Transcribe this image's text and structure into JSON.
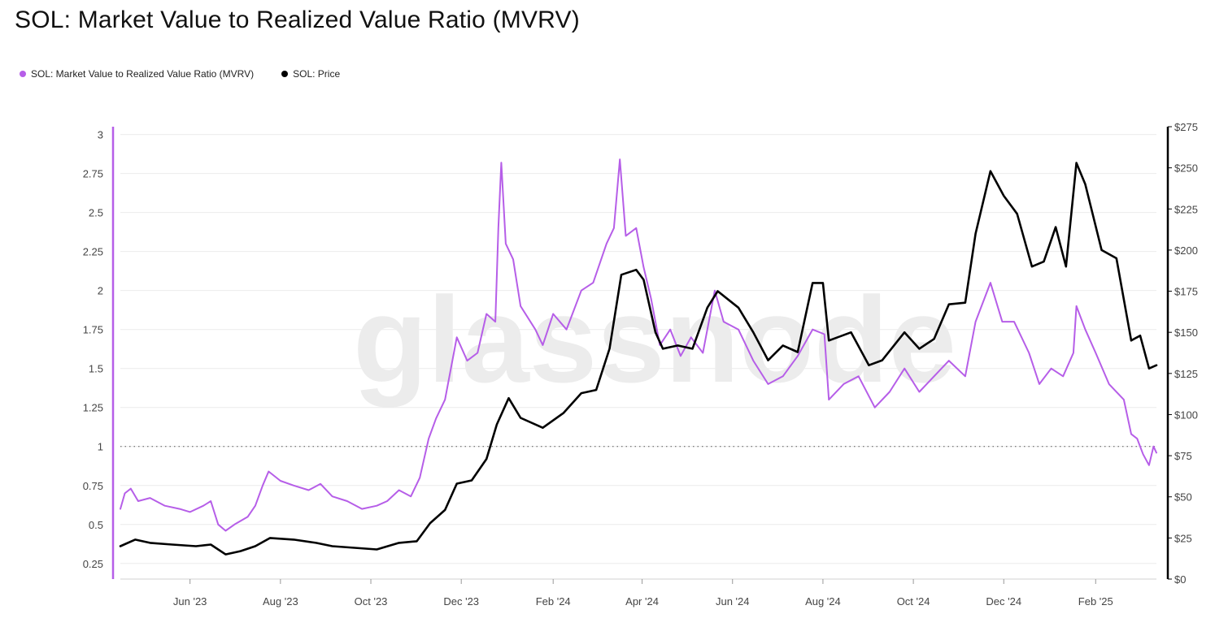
{
  "title": "SOL: Market Value to Realized Value Ratio (MVRV)",
  "legend": [
    {
      "label": "SOL: Market Value to Realized Value Ratio (MVRV)",
      "color": "#b65ee8"
    },
    {
      "label": "SOL: Price",
      "color": "#000000"
    }
  ],
  "watermark": "glassnode",
  "chart_data": {
    "type": "line",
    "title": "SOL: Market Value to Realized Value Ratio (MVRV)",
    "x_ticks": [
      "Jun '23",
      "Aug '23",
      "Oct '23",
      "Dec '23",
      "Feb '24",
      "Apr '24",
      "Jun '24",
      "Aug '24",
      "Oct '24",
      "Dec '24",
      "Feb '25"
    ],
    "x_range": [
      "2023-04-15",
      "2025-03-14"
    ],
    "y_left": {
      "ticks": [
        "0.25",
        "0.5",
        "0.75",
        "1",
        "1.25",
        "1.5",
        "1.75",
        "2",
        "2.25",
        "2.5",
        "2.75",
        "3"
      ],
      "range": [
        0.15,
        3.05
      ]
    },
    "y_right": {
      "ticks": [
        "$0",
        "$25",
        "$50",
        "$75",
        "$100",
        "$125",
        "$150",
        "$175",
        "$200",
        "$225",
        "$250",
        "$275"
      ],
      "range": [
        0,
        275
      ]
    },
    "reference_line": {
      "axis": "left",
      "value": 1
    },
    "series": [
      {
        "name": "SOL: Market Value to Realized Value Ratio (MVRV)",
        "axis": "left",
        "color": "#b65ee8",
        "points": [
          [
            "2023-04-15",
            0.6
          ],
          [
            "2023-04-18",
            0.7
          ],
          [
            "2023-04-22",
            0.73
          ],
          [
            "2023-04-27",
            0.65
          ],
          [
            "2023-05-05",
            0.67
          ],
          [
            "2023-05-15",
            0.62
          ],
          [
            "2023-05-25",
            0.6
          ],
          [
            "2023-06-01",
            0.58
          ],
          [
            "2023-06-10",
            0.62
          ],
          [
            "2023-06-15",
            0.65
          ],
          [
            "2023-06-20",
            0.5
          ],
          [
            "2023-06-25",
            0.46
          ],
          [
            "2023-07-01",
            0.5
          ],
          [
            "2023-07-10",
            0.55
          ],
          [
            "2023-07-15",
            0.62
          ],
          [
            "2023-07-20",
            0.75
          ],
          [
            "2023-07-24",
            0.84
          ],
          [
            "2023-08-01",
            0.78
          ],
          [
            "2023-08-10",
            0.75
          ],
          [
            "2023-08-20",
            0.72
          ],
          [
            "2023-08-28",
            0.76
          ],
          [
            "2023-09-05",
            0.68
          ],
          [
            "2023-09-15",
            0.65
          ],
          [
            "2023-09-25",
            0.6
          ],
          [
            "2023-10-05",
            0.62
          ],
          [
            "2023-10-12",
            0.65
          ],
          [
            "2023-10-20",
            0.72
          ],
          [
            "2023-10-28",
            0.68
          ],
          [
            "2023-11-03",
            0.8
          ],
          [
            "2023-11-09",
            1.05
          ],
          [
            "2023-11-14",
            1.18
          ],
          [
            "2023-11-20",
            1.3
          ],
          [
            "2023-11-28",
            1.7
          ],
          [
            "2023-12-05",
            1.55
          ],
          [
            "2023-12-12",
            1.6
          ],
          [
            "2023-12-18",
            1.85
          ],
          [
            "2023-12-24",
            1.8
          ],
          [
            "2023-12-26",
            2.4
          ],
          [
            "2023-12-28",
            2.82
          ],
          [
            "2023-12-31",
            2.3
          ],
          [
            "2024-01-05",
            2.2
          ],
          [
            "2024-01-10",
            1.9
          ],
          [
            "2024-01-20",
            1.75
          ],
          [
            "2024-01-25",
            1.65
          ],
          [
            "2024-02-01",
            1.85
          ],
          [
            "2024-02-10",
            1.75
          ],
          [
            "2024-02-20",
            2.0
          ],
          [
            "2024-02-28",
            2.05
          ],
          [
            "2024-03-08",
            2.3
          ],
          [
            "2024-03-13",
            2.4
          ],
          [
            "2024-03-17",
            2.84
          ],
          [
            "2024-03-21",
            2.35
          ],
          [
            "2024-03-28",
            2.4
          ],
          [
            "2024-04-02",
            2.15
          ],
          [
            "2024-04-07",
            1.95
          ],
          [
            "2024-04-13",
            1.65
          ],
          [
            "2024-04-20",
            1.75
          ],
          [
            "2024-04-27",
            1.58
          ],
          [
            "2024-05-04",
            1.7
          ],
          [
            "2024-05-12",
            1.6
          ],
          [
            "2024-05-20",
            2.0
          ],
          [
            "2024-05-26",
            1.8
          ],
          [
            "2024-06-05",
            1.75
          ],
          [
            "2024-06-15",
            1.55
          ],
          [
            "2024-06-25",
            1.4
          ],
          [
            "2024-07-05",
            1.45
          ],
          [
            "2024-07-15",
            1.58
          ],
          [
            "2024-07-25",
            1.75
          ],
          [
            "2024-08-02",
            1.72
          ],
          [
            "2024-08-05",
            1.3
          ],
          [
            "2024-08-15",
            1.4
          ],
          [
            "2024-08-25",
            1.45
          ],
          [
            "2024-09-05",
            1.25
          ],
          [
            "2024-09-15",
            1.35
          ],
          [
            "2024-09-25",
            1.5
          ],
          [
            "2024-10-05",
            1.35
          ],
          [
            "2024-10-15",
            1.45
          ],
          [
            "2024-10-25",
            1.55
          ],
          [
            "2024-11-05",
            1.45
          ],
          [
            "2024-11-12",
            1.8
          ],
          [
            "2024-11-22",
            2.05
          ],
          [
            "2024-11-30",
            1.8
          ],
          [
            "2024-12-08",
            1.8
          ],
          [
            "2024-12-18",
            1.6
          ],
          [
            "2024-12-25",
            1.4
          ],
          [
            "2025-01-02",
            1.5
          ],
          [
            "2025-01-10",
            1.45
          ],
          [
            "2025-01-17",
            1.6
          ],
          [
            "2025-01-19",
            1.9
          ],
          [
            "2025-01-25",
            1.75
          ],
          [
            "2025-02-01",
            1.6
          ],
          [
            "2025-02-10",
            1.4
          ],
          [
            "2025-02-20",
            1.3
          ],
          [
            "2025-02-25",
            1.08
          ],
          [
            "2025-03-01",
            1.05
          ],
          [
            "2025-03-05",
            0.95
          ],
          [
            "2025-03-09",
            0.88
          ],
          [
            "2025-03-12",
            1.0
          ],
          [
            "2025-03-14",
            0.96
          ]
        ]
      },
      {
        "name": "SOL: Price",
        "axis": "right",
        "color": "#000000",
        "points": [
          [
            "2023-04-15",
            20
          ],
          [
            "2023-04-25",
            24
          ],
          [
            "2023-05-05",
            22
          ],
          [
            "2023-05-20",
            21
          ],
          [
            "2023-06-05",
            20
          ],
          [
            "2023-06-15",
            21
          ],
          [
            "2023-06-25",
            15
          ],
          [
            "2023-07-05",
            17
          ],
          [
            "2023-07-15",
            20
          ],
          [
            "2023-07-25",
            25
          ],
          [
            "2023-08-10",
            24
          ],
          [
            "2023-08-25",
            22
          ],
          [
            "2023-09-05",
            20
          ],
          [
            "2023-09-20",
            19
          ],
          [
            "2023-10-05",
            18
          ],
          [
            "2023-10-20",
            22
          ],
          [
            "2023-11-01",
            23
          ],
          [
            "2023-11-10",
            34
          ],
          [
            "2023-11-20",
            42
          ],
          [
            "2023-11-28",
            58
          ],
          [
            "2023-12-08",
            60
          ],
          [
            "2023-12-18",
            73
          ],
          [
            "2023-12-25",
            94
          ],
          [
            "2024-01-02",
            110
          ],
          [
            "2024-01-10",
            98
          ],
          [
            "2024-01-25",
            92
          ],
          [
            "2024-02-08",
            101
          ],
          [
            "2024-02-20",
            113
          ],
          [
            "2024-03-01",
            115
          ],
          [
            "2024-03-10",
            140
          ],
          [
            "2024-03-18",
            185
          ],
          [
            "2024-03-28",
            188
          ],
          [
            "2024-04-02",
            182
          ],
          [
            "2024-04-10",
            150
          ],
          [
            "2024-04-15",
            140
          ],
          [
            "2024-04-25",
            142
          ],
          [
            "2024-05-05",
            140
          ],
          [
            "2024-05-15",
            165
          ],
          [
            "2024-05-22",
            175
          ],
          [
            "2024-06-05",
            165
          ],
          [
            "2024-06-15",
            150
          ],
          [
            "2024-06-25",
            133
          ],
          [
            "2024-07-05",
            142
          ],
          [
            "2024-07-15",
            138
          ],
          [
            "2024-07-25",
            180
          ],
          [
            "2024-08-01",
            180
          ],
          [
            "2024-08-05",
            145
          ],
          [
            "2024-08-20",
            150
          ],
          [
            "2024-09-01",
            130
          ],
          [
            "2024-09-10",
            133
          ],
          [
            "2024-09-25",
            150
          ],
          [
            "2024-10-05",
            140
          ],
          [
            "2024-10-15",
            146
          ],
          [
            "2024-10-25",
            167
          ],
          [
            "2024-11-05",
            168
          ],
          [
            "2024-11-12",
            210
          ],
          [
            "2024-11-22",
            248
          ],
          [
            "2024-12-01",
            233
          ],
          [
            "2024-12-10",
            222
          ],
          [
            "2024-12-20",
            190
          ],
          [
            "2024-12-28",
            193
          ],
          [
            "2025-01-05",
            214
          ],
          [
            "2025-01-12",
            190
          ],
          [
            "2025-01-19",
            253
          ],
          [
            "2025-01-25",
            240
          ],
          [
            "2025-02-05",
            200
          ],
          [
            "2025-02-15",
            195
          ],
          [
            "2025-02-25",
            145
          ],
          [
            "2025-03-03",
            148
          ],
          [
            "2025-03-09",
            128
          ],
          [
            "2025-03-14",
            130
          ]
        ]
      }
    ]
  }
}
